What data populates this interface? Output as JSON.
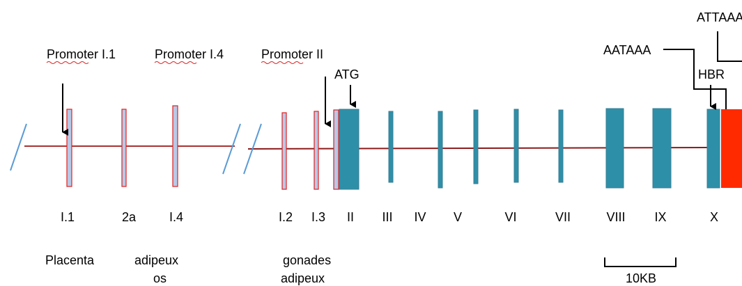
{
  "promoters": [
    "Promoter I.1",
    "Promoter I.4",
    "Promoter II"
  ],
  "atg": "ATG",
  "hbr": "HBR",
  "signal_1": "AATAAA",
  "signal_2": "ATTAAA",
  "exons": [
    "I.1",
    "2a",
    "I.4",
    "I.2",
    "I.3",
    "II",
    "III",
    "IV",
    "V",
    "VI",
    "VII",
    "VIII",
    "IX",
    "X"
  ],
  "tissues": {
    "placenta": "Placenta",
    "adipeux_1": "adipeux",
    "os": "os",
    "gonades": "gonades",
    "adipeux_2": "adipeux"
  },
  "scale": "10KB"
}
